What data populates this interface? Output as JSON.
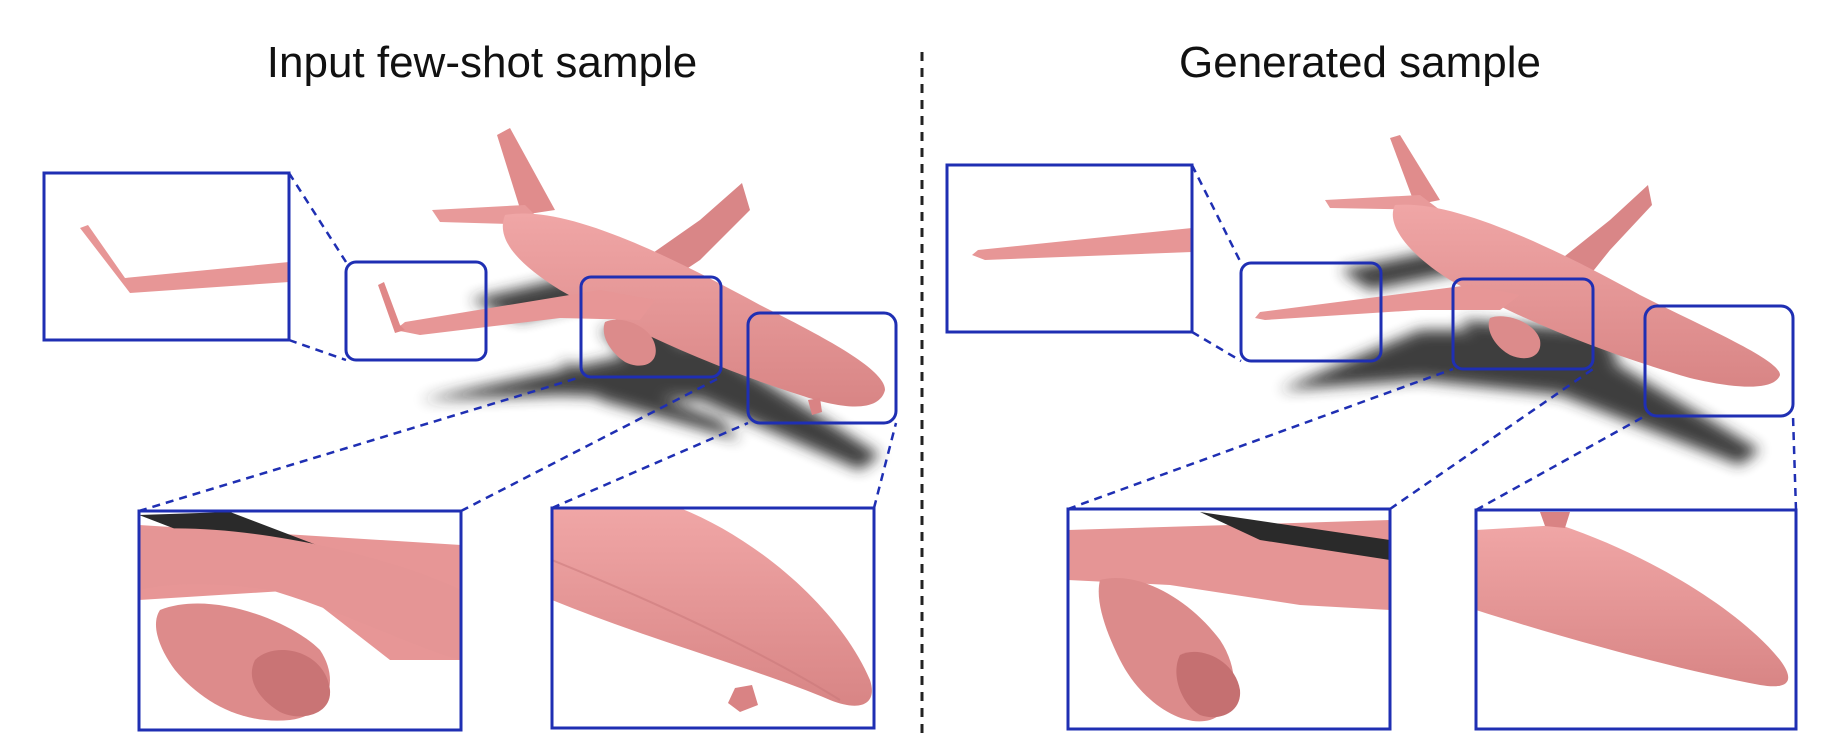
{
  "figure": {
    "left_panel": {
      "title": "Input few-shot sample"
    },
    "right_panel": {
      "title": "Generated sample"
    },
    "colors": {
      "mesh_pink": "#e79696",
      "mesh_shade": "#d27f80",
      "shadow": "#2b2b2b",
      "callout_blue": "#1f2fb3",
      "divider": "#222222"
    }
  }
}
